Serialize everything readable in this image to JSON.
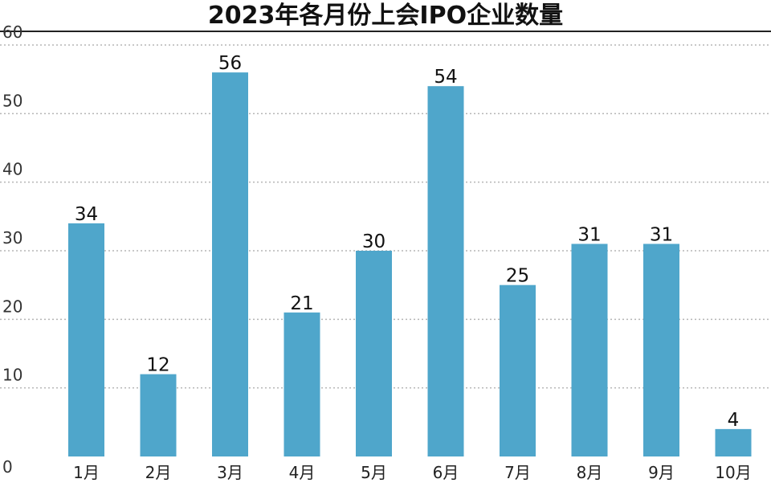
{
  "chart_data": {
    "type": "bar",
    "title": "2023年各月份上会IPO企业数量",
    "xlabel": "",
    "ylabel": "",
    "categories": [
      "1月",
      "2月",
      "3月",
      "4月",
      "5月",
      "6月",
      "7月",
      "8月",
      "9月",
      "10月"
    ],
    "values": [
      34,
      12,
      56,
      21,
      30,
      54,
      25,
      31,
      31,
      4
    ],
    "data_labels": [
      "34",
      "12",
      "56",
      "21",
      "30",
      "54",
      "25",
      "31",
      "31",
      "4"
    ],
    "ylim": [
      0,
      60
    ],
    "yticks": [
      0,
      10,
      20,
      30,
      40,
      50,
      60
    ],
    "ytick_labels": [
      "0",
      "10",
      "20",
      "30",
      "40",
      "50",
      "60"
    ],
    "grid": true,
    "legend": "none",
    "colors": {
      "bar": "#4fa6cb",
      "grid": "#b5b5b5",
      "title_rule": "#222222"
    }
  }
}
